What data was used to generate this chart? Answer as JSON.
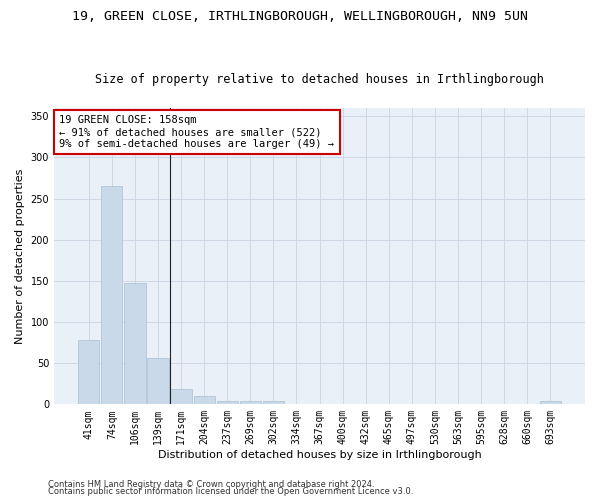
{
  "title": "19, GREEN CLOSE, IRTHLINGBOROUGH, WELLINGBOROUGH, NN9 5UN",
  "subtitle": "Size of property relative to detached houses in Irthlingborough",
  "xlabel": "Distribution of detached houses by size in Irthlingborough",
  "ylabel": "Number of detached properties",
  "categories": [
    "41sqm",
    "74sqm",
    "106sqm",
    "139sqm",
    "171sqm",
    "204sqm",
    "237sqm",
    "269sqm",
    "302sqm",
    "334sqm",
    "367sqm",
    "400sqm",
    "432sqm",
    "465sqm",
    "497sqm",
    "530sqm",
    "563sqm",
    "595sqm",
    "628sqm",
    "660sqm",
    "693sqm"
  ],
  "values": [
    78,
    265,
    147,
    56,
    19,
    10,
    4,
    4,
    4,
    0,
    0,
    0,
    0,
    0,
    0,
    0,
    0,
    0,
    0,
    0,
    4
  ],
  "bar_color": "#c9d9ea",
  "bar_edge_color": "#a8bfd4",
  "vline_color": "#222222",
  "annotation_text": "19 GREEN CLOSE: 158sqm\n← 91% of detached houses are smaller (522)\n9% of semi-detached houses are larger (49) →",
  "annotation_box_color": "#ffffff",
  "annotation_box_edge_color": "#cc0000",
  "ylim": [
    0,
    360
  ],
  "yticks": [
    0,
    50,
    100,
    150,
    200,
    250,
    300,
    350
  ],
  "grid_color": "#d0d8e8",
  "bg_color": "#eaf0f8",
  "footer1": "Contains HM Land Registry data © Crown copyright and database right 2024.",
  "footer2": "Contains public sector information licensed under the Open Government Licence v3.0.",
  "title_fontsize": 9.5,
  "subtitle_fontsize": 8.5,
  "xlabel_fontsize": 8,
  "ylabel_fontsize": 8,
  "tick_fontsize": 7,
  "annotation_fontsize": 7.5,
  "footer_fontsize": 6
}
